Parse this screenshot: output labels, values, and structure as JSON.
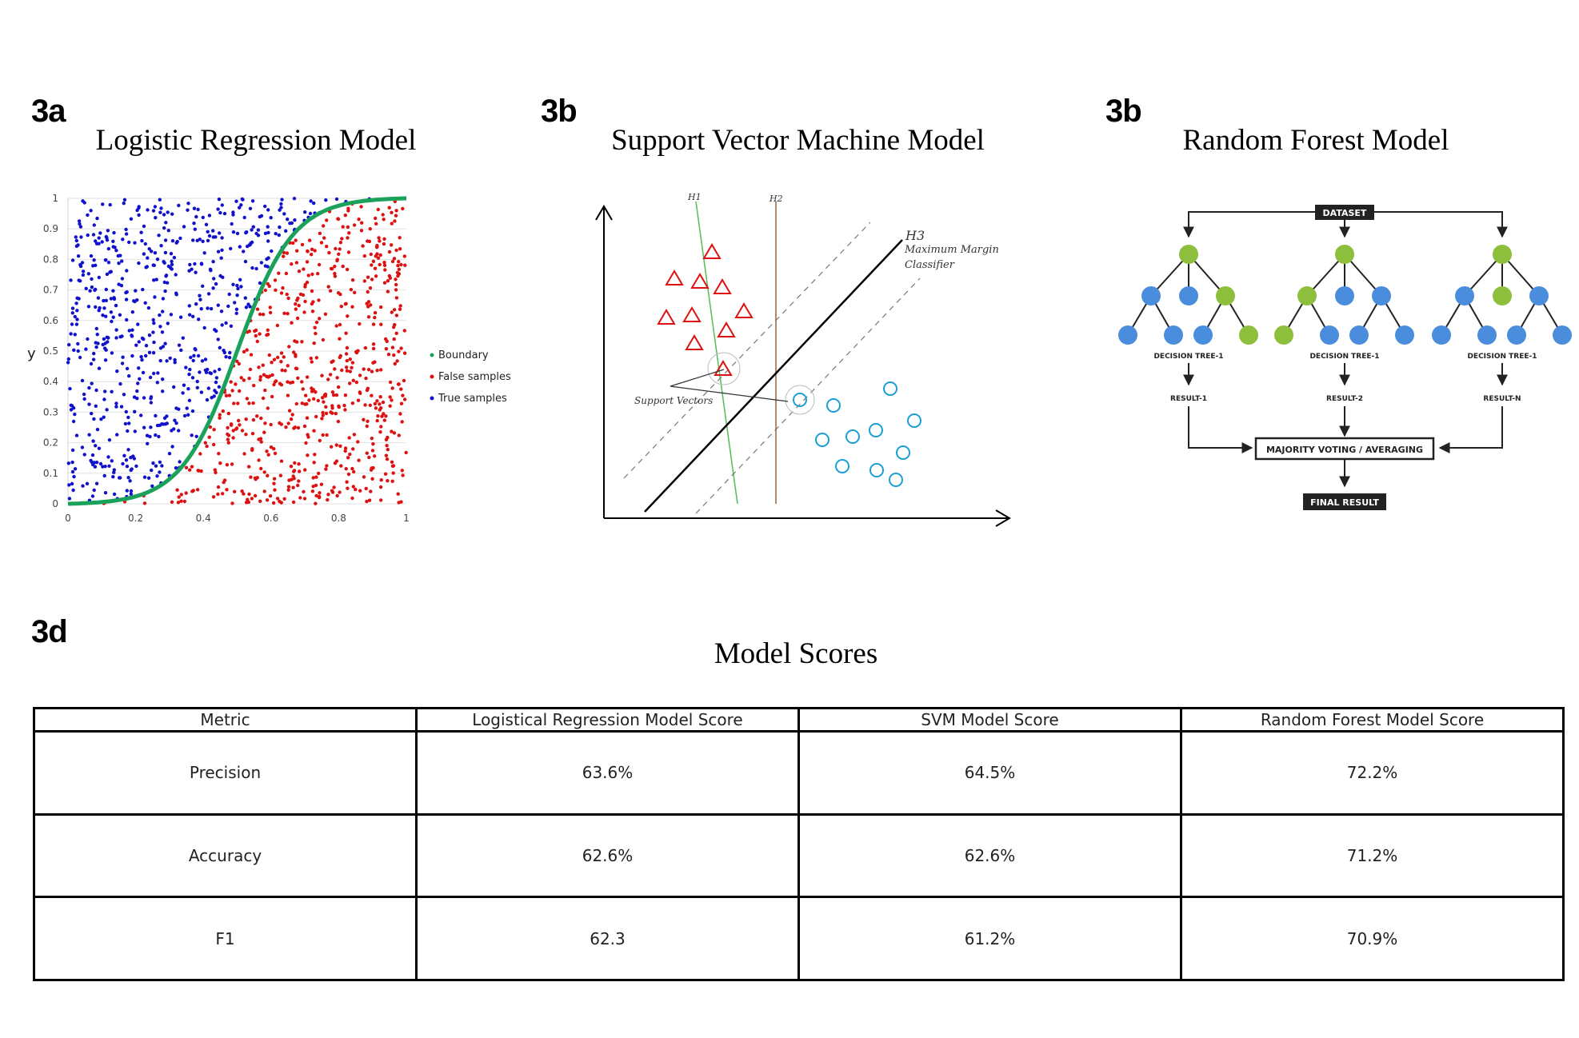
{
  "panels": {
    "a": {
      "label": "3a",
      "title": "Logistic Regression Model"
    },
    "b": {
      "label": "3b",
      "title": "Support Vector Machine Model"
    },
    "c": {
      "label": "3b",
      "title": "Random Forest Model"
    },
    "d": {
      "label": "3d",
      "title": "Model Scores"
    }
  },
  "chart_data": {
    "type": "scatter",
    "title": "",
    "ylabel": "y",
    "xlabel": "",
    "xlim": [
      0,
      1
    ],
    "ylim": [
      0,
      1
    ],
    "x_ticks": [
      "0",
      "0.2",
      "0.4",
      "0.6",
      "0.8",
      "1"
    ],
    "y_ticks": [
      "0",
      "0.1",
      "0.2",
      "0.3",
      "0.4",
      "0.5",
      "0.6",
      "0.7",
      "0.8",
      "0.9",
      "1"
    ],
    "grid": "horizontal",
    "legend_placement": "right",
    "series": [
      {
        "name": "Boundary",
        "type": "line",
        "color": "#1aa15a",
        "function": "sigmoid",
        "center_x": 0.5
      },
      {
        "name": "False samples",
        "color": "#dd1111",
        "region": "below-boundary"
      },
      {
        "name": "True samples",
        "color": "#1111cc",
        "region": "above-boundary"
      }
    ]
  },
  "svm": {
    "labels": {
      "h1": "H1",
      "h2": "H2",
      "h3": "H3",
      "max_margin": "Maximum Margin",
      "classifier": "Classifier",
      "support_vectors": "Support Vectors"
    },
    "colors": {
      "triangles": "#dd1111",
      "circles": "#1a9fd6",
      "h1": "#55bb55",
      "h2": "#b08a6a"
    }
  },
  "forest": {
    "dataset": "DATASET",
    "trees": [
      "DECISION TREE-1",
      "DECISION TREE-1",
      "DECISION TREE-1"
    ],
    "results": [
      "RESULT-1",
      "RESULT-2",
      "RESULT-N"
    ],
    "voting": "MAJORITY VOTING / AVERAGING",
    "final": "FINAL RESULT",
    "colors": {
      "green": "#8dbf3c",
      "blue": "#4a8ddc"
    }
  },
  "table": {
    "headers": [
      "Metric",
      "Logistical Regression Model Score",
      "SVM Model Score",
      "Random Forest Model Score"
    ],
    "rows": [
      [
        "Precision",
        "63.6%",
        "64.5%",
        "72.2%"
      ],
      [
        "Accuracy",
        "62.6%",
        "62.6%",
        "71.2%"
      ],
      [
        "F1",
        "62.3",
        "61.2%",
        "70.9%"
      ]
    ]
  }
}
